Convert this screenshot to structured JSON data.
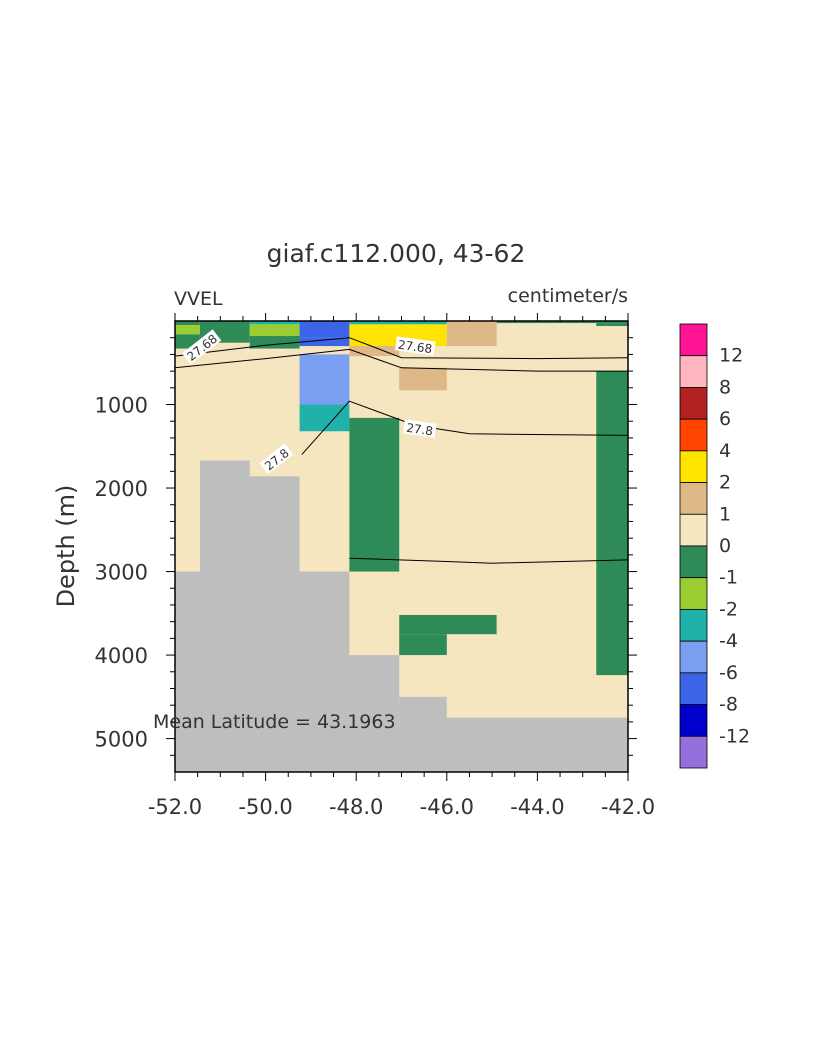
{
  "chart_data": {
    "type": "heatmap",
    "title": "giaf.c112.000, 43-62",
    "left_label": "VVEL",
    "right_label": "centimeter/s",
    "ylabel": "Depth (m)",
    "xlabel": "",
    "annotation": "Mean Latitude = 43.1963",
    "xlim": [
      -52.0,
      -42.0
    ],
    "ylim": [
      5400,
      0
    ],
    "x_ticks": [
      "-52.0",
      "-50.0",
      "-48.0",
      "-46.0",
      "-44.0",
      "-42.0"
    ],
    "x_tick_values": [
      -52,
      -50,
      -48,
      -46,
      -44,
      -42
    ],
    "y_ticks": [
      "1000",
      "2000",
      "3000",
      "4000",
      "5000"
    ],
    "y_tick_values": [
      1000,
      2000,
      3000,
      4000,
      5000
    ],
    "grid": false,
    "colorbar": {
      "placement": "right",
      "labels": [
        "12",
        "8",
        "6",
        "4",
        "2",
        "1",
        "0",
        "-1",
        "-2",
        "-4",
        "-6",
        "-8",
        "-12"
      ],
      "colors": [
        "#ff1493",
        "#ffb6c1",
        "#b22222",
        "#ff4500",
        "#ffe400",
        "#deb887",
        "#f5e6c0",
        "#2e8b57",
        "#9acd32",
        "#20b2aa",
        "#7b9ff0",
        "#3c64e6",
        "#0000cd",
        "#9370db"
      ]
    },
    "colors": {
      "land": "#bebebe",
      "background_value": "#f5e6c0"
    },
    "cells": [
      {
        "x0": -52.0,
        "x1": -42.0,
        "y0": 0,
        "y1": 5400,
        "color": "#f5e6c0"
      },
      {
        "x0": -52.0,
        "x1": -51.45,
        "y0": 0,
        "y1": 50,
        "color": "#2e8b57"
      },
      {
        "x0": -52.0,
        "x1": -51.45,
        "y0": 50,
        "y1": 160,
        "color": "#9acd32"
      },
      {
        "x0": -52.0,
        "x1": -51.45,
        "y0": 160,
        "y1": 330,
        "color": "#2e8b57"
      },
      {
        "x0": -51.45,
        "x1": -50.35,
        "y0": 0,
        "y1": 60,
        "color": "#2e8b57"
      },
      {
        "x0": -51.45,
        "x1": -50.35,
        "y0": 60,
        "y1": 260,
        "color": "#2e8b57"
      },
      {
        "x0": -50.35,
        "x1": -49.25,
        "y0": 0,
        "y1": 40,
        "color": "#20b2aa"
      },
      {
        "x0": -50.35,
        "x1": -49.25,
        "y0": 40,
        "y1": 180,
        "color": "#9acd32"
      },
      {
        "x0": -50.35,
        "x1": -49.25,
        "y0": 180,
        "y1": 330,
        "color": "#2e8b57"
      },
      {
        "x0": -49.25,
        "x1": -48.15,
        "y0": 0,
        "y1": 200,
        "color": "#3c64e6"
      },
      {
        "x0": -49.25,
        "x1": -48.15,
        "y0": 200,
        "y1": 300,
        "color": "#3c64e6"
      },
      {
        "x0": -49.25,
        "x1": -48.15,
        "y0": 400,
        "y1": 1000,
        "color": "#7b9ff0"
      },
      {
        "x0": -49.25,
        "x1": -48.15,
        "y0": 1000,
        "y1": 1320,
        "color": "#20b2aa"
      },
      {
        "x0": -48.15,
        "x1": -46.0,
        "y0": 0,
        "y1": 40,
        "color": "#20b2aa"
      },
      {
        "x0": -48.15,
        "x1": -46.0,
        "y0": 40,
        "y1": 300,
        "color": "#ffe400"
      },
      {
        "x0": -48.15,
        "x1": -47.05,
        "y0": 300,
        "y1": 420,
        "color": "#deb887"
      },
      {
        "x0": -47.05,
        "x1": -46.0,
        "y0": 560,
        "y1": 830,
        "color": "#deb887"
      },
      {
        "x0": -46.0,
        "x1": -44.9,
        "y0": 0,
        "y1": 300,
        "color": "#deb887"
      },
      {
        "x0": -44.9,
        "x1": -42.0,
        "y0": 0,
        "y1": 25,
        "color": "#2e8b57"
      },
      {
        "x0": -42.7,
        "x1": -42.0,
        "y0": 25,
        "y1": 60,
        "color": "#2e8b57"
      },
      {
        "x0": -48.15,
        "x1": -47.05,
        "y0": 1160,
        "y1": 3000,
        "color": "#2e8b57"
      },
      {
        "x0": -42.7,
        "x1": -42.0,
        "y0": 600,
        "y1": 4240,
        "color": "#2e8b57"
      },
      {
        "x0": -47.05,
        "x1": -44.9,
        "y0": 3520,
        "y1": 3750,
        "color": "#2e8b57"
      },
      {
        "x0": -47.05,
        "x1": -46.0,
        "y0": 3750,
        "y1": 4000,
        "color": "#2e8b57"
      },
      {
        "x0": -52.0,
        "x1": -51.45,
        "y0": 3000,
        "y1": 5400,
        "color": "#bebebe"
      },
      {
        "x0": -51.45,
        "x1": -50.35,
        "y0": 1670,
        "y1": 5400,
        "color": "#bebebe"
      },
      {
        "x0": -50.35,
        "x1": -49.25,
        "y0": 1860,
        "y1": 5400,
        "color": "#bebebe"
      },
      {
        "x0": -49.25,
        "x1": -48.15,
        "y0": 3000,
        "y1": 5400,
        "color": "#bebebe"
      },
      {
        "x0": -48.15,
        "x1": -47.05,
        "y0": 4000,
        "y1": 5400,
        "color": "#bebebe"
      },
      {
        "x0": -47.05,
        "x1": -46.0,
        "y0": 4500,
        "y1": 5400,
        "color": "#bebebe"
      },
      {
        "x0": -46.0,
        "x1": -42.0,
        "y0": 4750,
        "y1": 5400,
        "color": "#bebebe"
      }
    ],
    "contours": [
      {
        "label": "27.68",
        "label_at": [
          -51.4,
          320
        ],
        "points": [
          [
            -52.0,
            420
          ],
          [
            -50.0,
            290
          ],
          [
            -48.15,
            200
          ],
          [
            -47.0,
            440
          ],
          [
            -44.0,
            450
          ],
          [
            -42.0,
            440
          ]
        ]
      },
      {
        "label": "27.68",
        "label_at": [
          -46.7,
          310
        ],
        "points": [
          [
            -52.0,
            560
          ],
          [
            -50.0,
            450
          ],
          [
            -48.15,
            340
          ],
          [
            -47.0,
            560
          ],
          [
            -44.0,
            600
          ],
          [
            -42.0,
            600
          ]
        ]
      },
      {
        "label": "27.8",
        "label_at": [
          -46.6,
          1300
        ],
        "points": [
          [
            -49.2,
            1600
          ],
          [
            -48.15,
            960
          ],
          [
            -46.7,
            1250
          ],
          [
            -45.5,
            1350
          ],
          [
            -42.0,
            1370
          ]
        ]
      },
      {
        "label": "27.8",
        "label_at": [
          -49.75,
          1660
        ],
        "points": []
      },
      {
        "label": "",
        "label_at": null,
        "points": [
          [
            -48.15,
            2840
          ],
          [
            -46.0,
            2880
          ],
          [
            -45.0,
            2900
          ],
          [
            -42.0,
            2860
          ]
        ]
      }
    ]
  }
}
